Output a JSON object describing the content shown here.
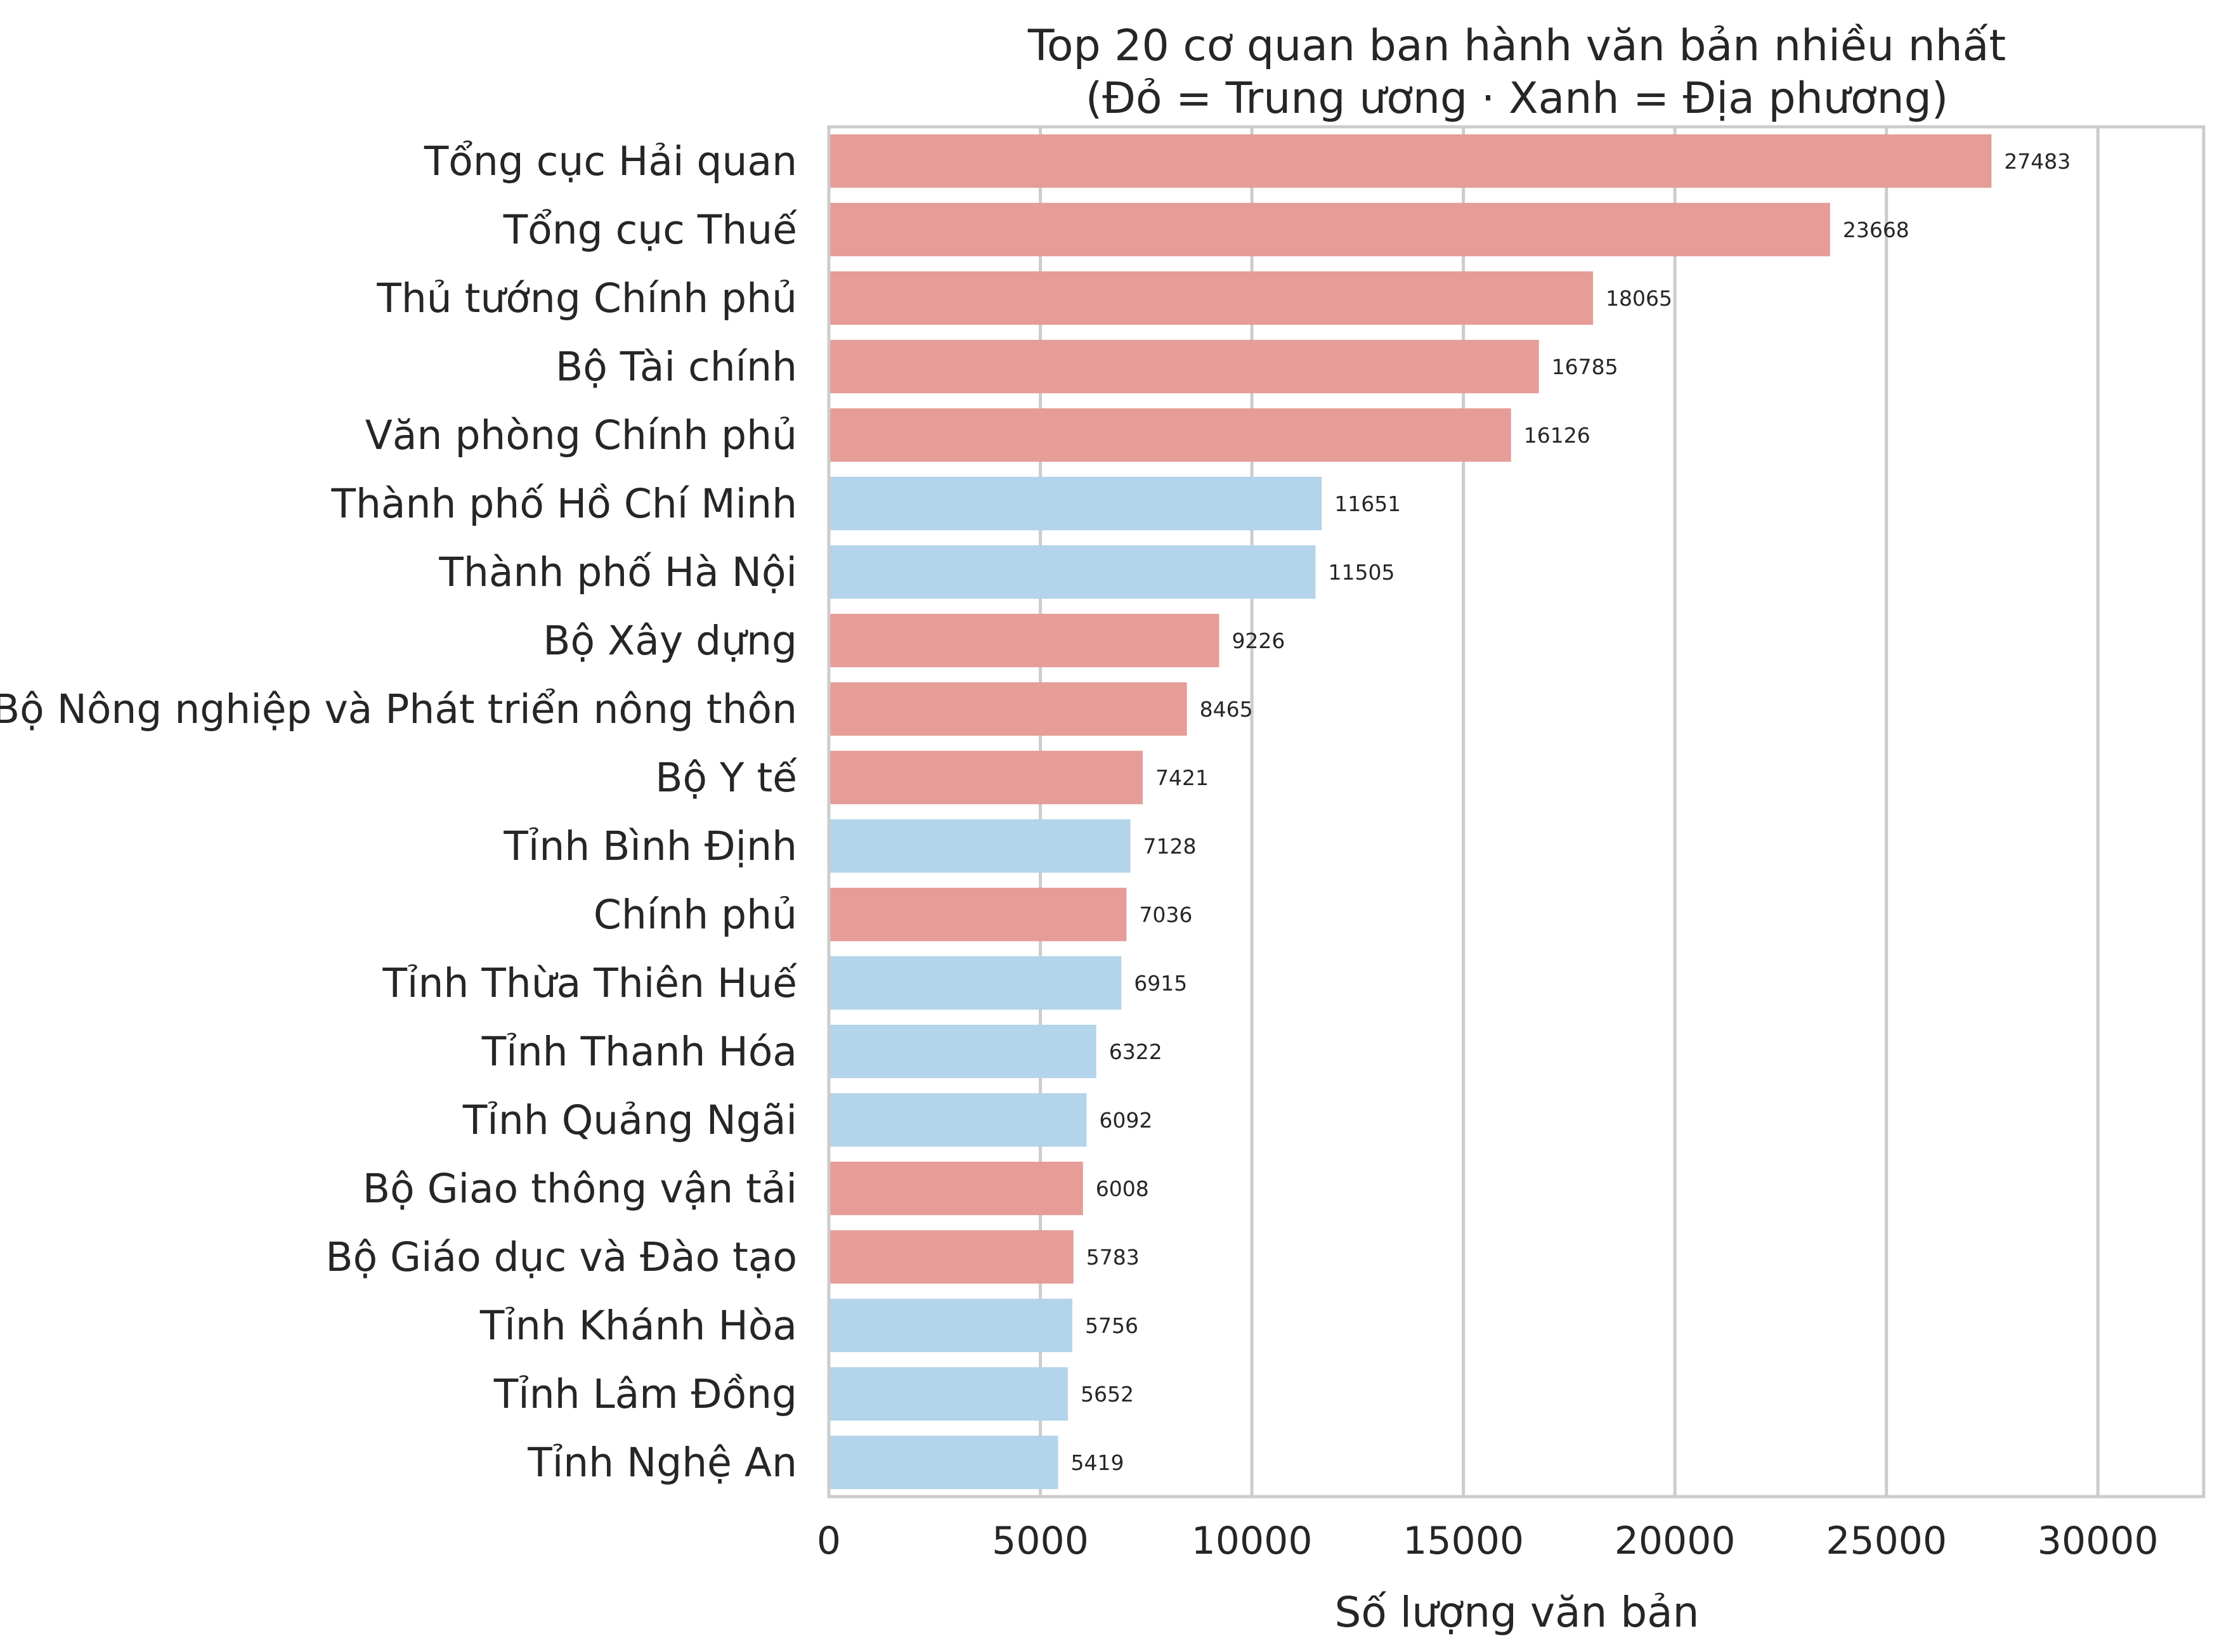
{
  "chart_data": {
    "type": "bar",
    "orientation": "horizontal",
    "title": "Top 20 cơ quan ban hành văn bản nhiều nhất",
    "subtitle": "(Đỏ = Trung ương · Xanh = Địa phương)",
    "xlabel": "Số lượng văn bản",
    "ylabel": "",
    "xlim": [
      0,
      32500
    ],
    "xticks": [
      0,
      5000,
      10000,
      15000,
      20000,
      25000,
      30000
    ],
    "grid": true,
    "colors": {
      "central": "#e69c97",
      "local": "#b3d4ea",
      "grid": "#cccccc",
      "frame": "#cccccc"
    },
    "bars": [
      {
        "label": "Tổng cục Hải quan",
        "value": 27483,
        "group": "central"
      },
      {
        "label": "Tổng cục Thuế",
        "value": 23668,
        "group": "central"
      },
      {
        "label": "Thủ tướng Chính phủ",
        "value": 18065,
        "group": "central"
      },
      {
        "label": "Bộ Tài chính",
        "value": 16785,
        "group": "central"
      },
      {
        "label": "Văn phòng Chính phủ",
        "value": 16126,
        "group": "central"
      },
      {
        "label": "Thành phố Hồ Chí Minh",
        "value": 11651,
        "group": "local"
      },
      {
        "label": "Thành phố Hà Nội",
        "value": 11505,
        "group": "local"
      },
      {
        "label": "Bộ Xây dựng",
        "value": 9226,
        "group": "central"
      },
      {
        "label": "Bộ Nông nghiệp và Phát triển nông thôn",
        "value": 8465,
        "group": "central"
      },
      {
        "label": "Bộ Y tế",
        "value": 7421,
        "group": "central"
      },
      {
        "label": "Tỉnh Bình Định",
        "value": 7128,
        "group": "local"
      },
      {
        "label": "Chính phủ",
        "value": 7036,
        "group": "central"
      },
      {
        "label": "Tỉnh Thừa Thiên Huế",
        "value": 6915,
        "group": "local"
      },
      {
        "label": "Tỉnh Thanh Hóa",
        "value": 6322,
        "group": "local"
      },
      {
        "label": "Tỉnh Quảng Ngãi",
        "value": 6092,
        "group": "local"
      },
      {
        "label": "Bộ Giao thông vận tải",
        "value": 6008,
        "group": "central"
      },
      {
        "label": "Bộ Giáo dục và Đào tạo",
        "value": 5783,
        "group": "central"
      },
      {
        "label": "Tỉnh Khánh Hòa",
        "value": 5756,
        "group": "local"
      },
      {
        "label": "Tỉnh Lâm Đồng",
        "value": 5652,
        "group": "local"
      },
      {
        "label": "Tỉnh Nghệ An",
        "value": 5419,
        "group": "local"
      }
    ]
  }
}
